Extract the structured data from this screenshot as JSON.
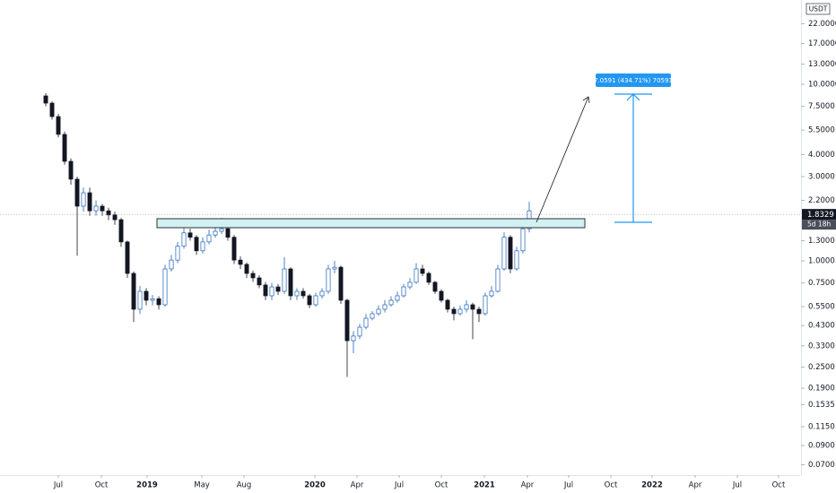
{
  "chart_data": {
    "type": "candlestick",
    "currency": "USDT",
    "log_scale": true,
    "grid": false,
    "up_color": "#ffffff",
    "up_stroke": "#1e63b4",
    "down_color": "#131722",
    "open": [
      8.59,
      7.82,
      6.56,
      5.2,
      3.66,
      2.9,
      2.04,
      2.43,
      1.92,
      2.04,
      1.92,
      1.82,
      1.71,
      1.28,
      0.849,
      0.532,
      0.672,
      0.598,
      0.61,
      0.564,
      0.9,
      1.01,
      1.21,
      1.44,
      1.36,
      1.14,
      1.28,
      1.4,
      1.47,
      1.52,
      1.36,
      1.01,
      0.955,
      0.849,
      0.801,
      0.73,
      0.634,
      0.712,
      0.672,
      0.9,
      0.634,
      0.672,
      0.634,
      0.564,
      0.634,
      0.672,
      0.9,
      0.92,
      0.598,
      0.353,
      0.375,
      0.421,
      0.473,
      0.502,
      0.532,
      0.564,
      0.598,
      0.634,
      0.712,
      0.756,
      0.9,
      0.849,
      0.756,
      0.672,
      0.598,
      0.532,
      0.502,
      0.532,
      0.564,
      0.532,
      0.502,
      0.634,
      0.672,
      0.9,
      1.36,
      0.9,
      1.14,
      1.52
    ],
    "high": [
      8.9,
      8.0,
      6.8,
      5.4,
      3.8,
      3.0,
      2.6,
      2.6,
      2.2,
      2.1,
      2.0,
      1.9,
      1.75,
      1.3,
      0.87,
      0.72,
      0.7,
      0.64,
      0.63,
      0.95,
      1.08,
      1.28,
      1.55,
      1.52,
      1.4,
      1.36,
      1.5,
      1.56,
      1.75,
      1.55,
      1.4,
      1.06,
      0.98,
      0.88,
      0.83,
      0.76,
      0.75,
      0.74,
      1.05,
      0.92,
      0.7,
      0.7,
      0.65,
      0.66,
      0.7,
      0.95,
      1.0,
      0.94,
      0.61,
      0.4,
      0.44,
      0.5,
      0.52,
      0.56,
      0.6,
      0.63,
      0.67,
      0.74,
      0.8,
      0.97,
      0.95,
      0.87,
      0.77,
      0.69,
      0.61,
      0.55,
      0.56,
      0.6,
      0.58,
      0.55,
      0.66,
      0.72,
      0.95,
      1.45,
      1.4,
      1.2,
      1.6,
      2.16
    ],
    "low": [
      7.5,
      6.3,
      5.0,
      3.5,
      2.7,
      1.07,
      1.9,
      1.8,
      1.8,
      1.8,
      1.7,
      1.6,
      1.2,
      0.8,
      0.45,
      0.5,
      0.56,
      0.56,
      0.53,
      0.55,
      0.87,
      0.97,
      1.17,
      1.3,
      1.08,
      1.1,
      1.24,
      1.35,
      1.42,
      1.3,
      0.96,
      0.9,
      0.8,
      0.76,
      0.7,
      0.6,
      0.6,
      0.64,
      0.65,
      0.6,
      0.6,
      0.61,
      0.54,
      0.55,
      0.61,
      0.65,
      0.85,
      0.57,
      0.22,
      0.3,
      0.36,
      0.41,
      0.46,
      0.49,
      0.51,
      0.55,
      0.58,
      0.62,
      0.69,
      0.74,
      0.82,
      0.73,
      0.65,
      0.58,
      0.51,
      0.46,
      0.49,
      0.51,
      0.36,
      0.45,
      0.49,
      0.62,
      0.66,
      0.88,
      0.85,
      0.88,
      1.1,
      1.45
    ],
    "close": [
      7.82,
      6.56,
      5.2,
      3.66,
      2.9,
      2.04,
      2.43,
      1.92,
      2.04,
      1.92,
      1.82,
      1.71,
      1.28,
      0.849,
      0.532,
      0.672,
      0.598,
      0.61,
      0.564,
      0.9,
      1.01,
      1.21,
      1.44,
      1.36,
      1.14,
      1.28,
      1.4,
      1.47,
      1.52,
      1.36,
      1.01,
      0.955,
      0.849,
      0.801,
      0.73,
      0.634,
      0.712,
      0.672,
      0.9,
      0.634,
      0.672,
      0.634,
      0.564,
      0.634,
      0.672,
      0.9,
      0.92,
      0.598,
      0.353,
      0.375,
      0.421,
      0.473,
      0.502,
      0.532,
      0.564,
      0.598,
      0.634,
      0.712,
      0.756,
      0.9,
      0.849,
      0.756,
      0.672,
      0.598,
      0.532,
      0.502,
      0.532,
      0.564,
      0.532,
      0.502,
      0.634,
      0.672,
      0.9,
      1.36,
      0.9,
      1.14,
      1.52,
      1.92
    ],
    "xlim": [
      -7.29,
      120.29
    ],
    "xticks": [
      {
        "value": 2.0,
        "label": "Jul"
      },
      {
        "value": 8.86,
        "label": "Oct"
      },
      {
        "value": 16.14,
        "label": "2019"
      },
      {
        "value": 24.86,
        "label": "May"
      },
      {
        "value": 31.57,
        "label": "Aug"
      },
      {
        "value": 42.86,
        "label": "2020"
      },
      {
        "value": 49.57,
        "label": "Apr"
      },
      {
        "value": 56.29,
        "label": "Jul"
      },
      {
        "value": 63.0,
        "label": "Oct"
      },
      {
        "value": 69.86,
        "label": "2021"
      },
      {
        "value": 76.71,
        "label": "Apr"
      },
      {
        "value": 83.29,
        "label": "Jul"
      },
      {
        "value": 90.0,
        "label": "Oct"
      },
      {
        "value": 96.57,
        "label": "2022"
      },
      {
        "value": 103.43,
        "label": "Apr"
      },
      {
        "value": 110.14,
        "label": "Jul"
      },
      {
        "value": 116.71,
        "label": "Oct"
      }
    ],
    "ylim": [
      0.0612,
      30
    ],
    "yticks": [
      {
        "value": 22,
        "label": "22.0000"
      },
      {
        "value": 17,
        "label": "17.0000"
      },
      {
        "value": 13,
        "label": "13.0000"
      },
      {
        "value": 10,
        "label": "10.0000"
      },
      {
        "value": 7.5,
        "label": "7.5000"
      },
      {
        "value": 5.5,
        "label": "5.5000"
      },
      {
        "value": 4,
        "label": "4.0000"
      },
      {
        "value": 3,
        "label": "3.0000"
      },
      {
        "value": 2.2,
        "label": "2.2000"
      },
      {
        "value": 1.3,
        "label": "1.3000"
      },
      {
        "value": 1,
        "label": "1.0000"
      },
      {
        "value": 0.75,
        "label": "0.7500"
      },
      {
        "value": 0.55,
        "label": "0.5500"
      },
      {
        "value": 0.43,
        "label": "0.4300"
      },
      {
        "value": 0.33,
        "label": "0.3300"
      },
      {
        "value": 0.25,
        "label": "0.2500"
      },
      {
        "value": 0.19,
        "label": "0.1900"
      },
      {
        "value": 0.1535,
        "label": "0.1535"
      },
      {
        "value": 0.115,
        "label": "0.1150"
      },
      {
        "value": 0.09,
        "label": "0.0900"
      },
      {
        "value": 0.07,
        "label": "0.0700"
      }
    ],
    "current_price": 1.8329,
    "countdown": "5d 18h",
    "measure_label": "7.0591 (434.71%) 70591"
  }
}
